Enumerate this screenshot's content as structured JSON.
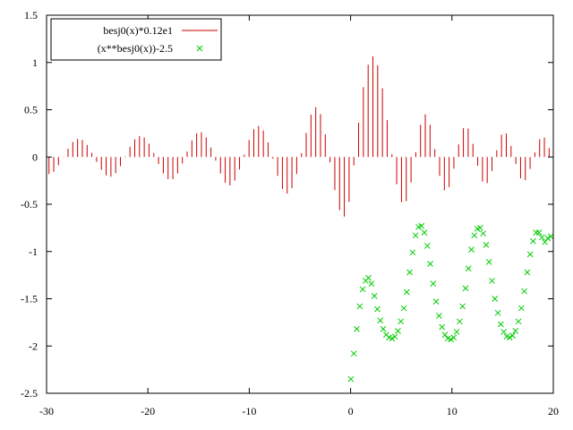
{
  "chart_data": {
    "type": "line",
    "title": "",
    "xlabel": "",
    "ylabel": "",
    "xlim": [
      -30,
      20
    ],
    "ylim": [
      -2.5,
      1.5
    ],
    "grid": false,
    "legend_position": "top-left",
    "x_ticks": [
      -30,
      -20,
      -10,
      0,
      10,
      20
    ],
    "x_tick_labels": [
      "-30",
      "-20",
      "-10",
      "0",
      "10",
      "20"
    ],
    "y_ticks": [
      -2.5,
      -2,
      -1.5,
      -1,
      -0.5,
      0,
      0.5,
      1,
      1.5
    ],
    "y_tick_labels": [
      "-2.5",
      "-2",
      "-1.5",
      "-1",
      "-0.5",
      "0",
      "0.5",
      "1",
      "1.5"
    ],
    "series": [
      {
        "name": "besj0(x)*0.12e1",
        "style": "impulses",
        "color": "#cc0000",
        "x": [
          -29.76,
          -29.29,
          -28.82,
          -28.35,
          -27.88,
          -27.41,
          -26.94,
          -26.47,
          -26.0,
          -25.53,
          -25.06,
          -24.59,
          -24.12,
          -23.65,
          -23.18,
          -22.71,
          -22.24,
          -21.77,
          -21.3,
          -20.83,
          -20.36,
          -19.89,
          -19.42,
          -18.95,
          -18.48,
          -18.01,
          -17.54,
          -17.07,
          -16.6,
          -16.13,
          -15.66,
          -15.19,
          -14.72,
          -14.25,
          -13.78,
          -13.31,
          -12.84,
          -12.37,
          -11.9,
          -11.43,
          -10.96,
          -10.49,
          -10.02,
          -9.55,
          -9.08,
          -8.61,
          -8.14,
          -7.67,
          -7.2,
          -6.73,
          -6.26,
          -5.79,
          -5.32,
          -4.85,
          -4.38,
          -3.91,
          -3.44,
          -2.97,
          -2.5,
          -2.03,
          -1.56,
          -1.09,
          -0.62,
          -0.15,
          0.32,
          0.79,
          1.26,
          1.73,
          2.2,
          2.67,
          3.14,
          3.61,
          4.08,
          4.55,
          5.02,
          5.49,
          5.96,
          6.43,
          6.9,
          7.37,
          7.84,
          8.31,
          8.78,
          9.25,
          9.72,
          10.19,
          10.66,
          11.13,
          11.6,
          12.07,
          12.54,
          13.01,
          13.48,
          13.95,
          14.42,
          14.89,
          15.36,
          15.83,
          16.3,
          16.77,
          17.24,
          17.71,
          18.18,
          18.65,
          19.12,
          19.59
        ],
        "y": [
          -0.181,
          -0.156,
          -0.087,
          0.003,
          0.089,
          0.159,
          0.191,
          0.18,
          0.127,
          0.044,
          -0.052,
          -0.136,
          -0.195,
          -0.208,
          -0.171,
          -0.096,
          0.006,
          0.108,
          0.187,
          0.222,
          0.205,
          0.141,
          0.042,
          -0.074,
          -0.174,
          -0.234,
          -0.234,
          -0.174,
          -0.069,
          0.057,
          0.175,
          0.252,
          0.262,
          0.208,
          0.1,
          -0.038,
          -0.174,
          -0.273,
          -0.301,
          -0.251,
          -0.133,
          0.024,
          0.18,
          0.294,
          0.329,
          0.28,
          0.154,
          -0.018,
          -0.2,
          -0.339,
          -0.387,
          -0.331,
          -0.18,
          0.04,
          0.254,
          0.448,
          0.526,
          0.453,
          0.24,
          -0.056,
          -0.35,
          -0.562,
          -0.631,
          -0.475,
          -0.09,
          0.363,
          0.738,
          0.977,
          1.065,
          0.971,
          0.727,
          0.39,
          0.03,
          -0.288,
          -0.478,
          -0.467,
          -0.27,
          0.05,
          0.341,
          0.451,
          0.341,
          0.084,
          -0.2,
          -0.353,
          -0.318,
          -0.124,
          0.134,
          0.305,
          0.301,
          0.138,
          -0.092,
          -0.26,
          -0.277,
          -0.147,
          0.071,
          0.235,
          0.249,
          0.117,
          -0.075,
          -0.226,
          -0.245,
          -0.127,
          0.048,
          0.188,
          0.206,
          0.094
        ]
      },
      {
        "name": "(x**besj0(x))-2.5",
        "style": "points",
        "marker": "x",
        "color": "#00cc00",
        "x": [
          0.03,
          0.32,
          0.61,
          0.9,
          1.19,
          1.48,
          1.77,
          2.06,
          2.35,
          2.64,
          2.93,
          3.22,
          3.51,
          3.8,
          4.09,
          4.38,
          4.67,
          4.96,
          5.25,
          5.54,
          5.83,
          6.12,
          6.41,
          6.7,
          6.99,
          7.28,
          7.57,
          7.86,
          8.15,
          8.44,
          8.73,
          9.02,
          9.31,
          9.6,
          9.89,
          10.18,
          10.47,
          10.76,
          11.05,
          11.34,
          11.63,
          11.92,
          12.21,
          12.5,
          12.79,
          13.08,
          13.37,
          13.66,
          13.95,
          14.24,
          14.53,
          14.82,
          15.11,
          15.4,
          15.69,
          15.98,
          16.27,
          16.56,
          16.85,
          17.14,
          17.43,
          17.72,
          18.01,
          18.3,
          18.59,
          18.88,
          19.17,
          19.46,
          19.75
        ],
        "y": [
          -2.35,
          -2.08,
          -1.82,
          -1.58,
          -1.4,
          -1.31,
          -1.28,
          -1.34,
          -1.47,
          -1.61,
          -1.73,
          -1.82,
          -1.88,
          -1.91,
          -1.92,
          -1.9,
          -1.84,
          -1.74,
          -1.6,
          -1.43,
          -1.22,
          -1.01,
          -0.83,
          -0.74,
          -0.73,
          -0.8,
          -0.94,
          -1.13,
          -1.34,
          -1.53,
          -1.68,
          -1.8,
          -1.88,
          -1.92,
          -1.93,
          -1.91,
          -1.85,
          -1.74,
          -1.58,
          -1.39,
          -1.18,
          -0.98,
          -0.83,
          -0.76,
          -0.75,
          -0.81,
          -0.93,
          -1.11,
          -1.31,
          -1.5,
          -1.65,
          -1.77,
          -1.85,
          -1.9,
          -1.91,
          -1.89,
          -1.84,
          -1.74,
          -1.6,
          -1.42,
          -1.22,
          -1.03,
          -0.89,
          -0.8,
          -0.8,
          -0.85,
          -0.9,
          -0.86,
          -0.84
        ]
      }
    ]
  }
}
